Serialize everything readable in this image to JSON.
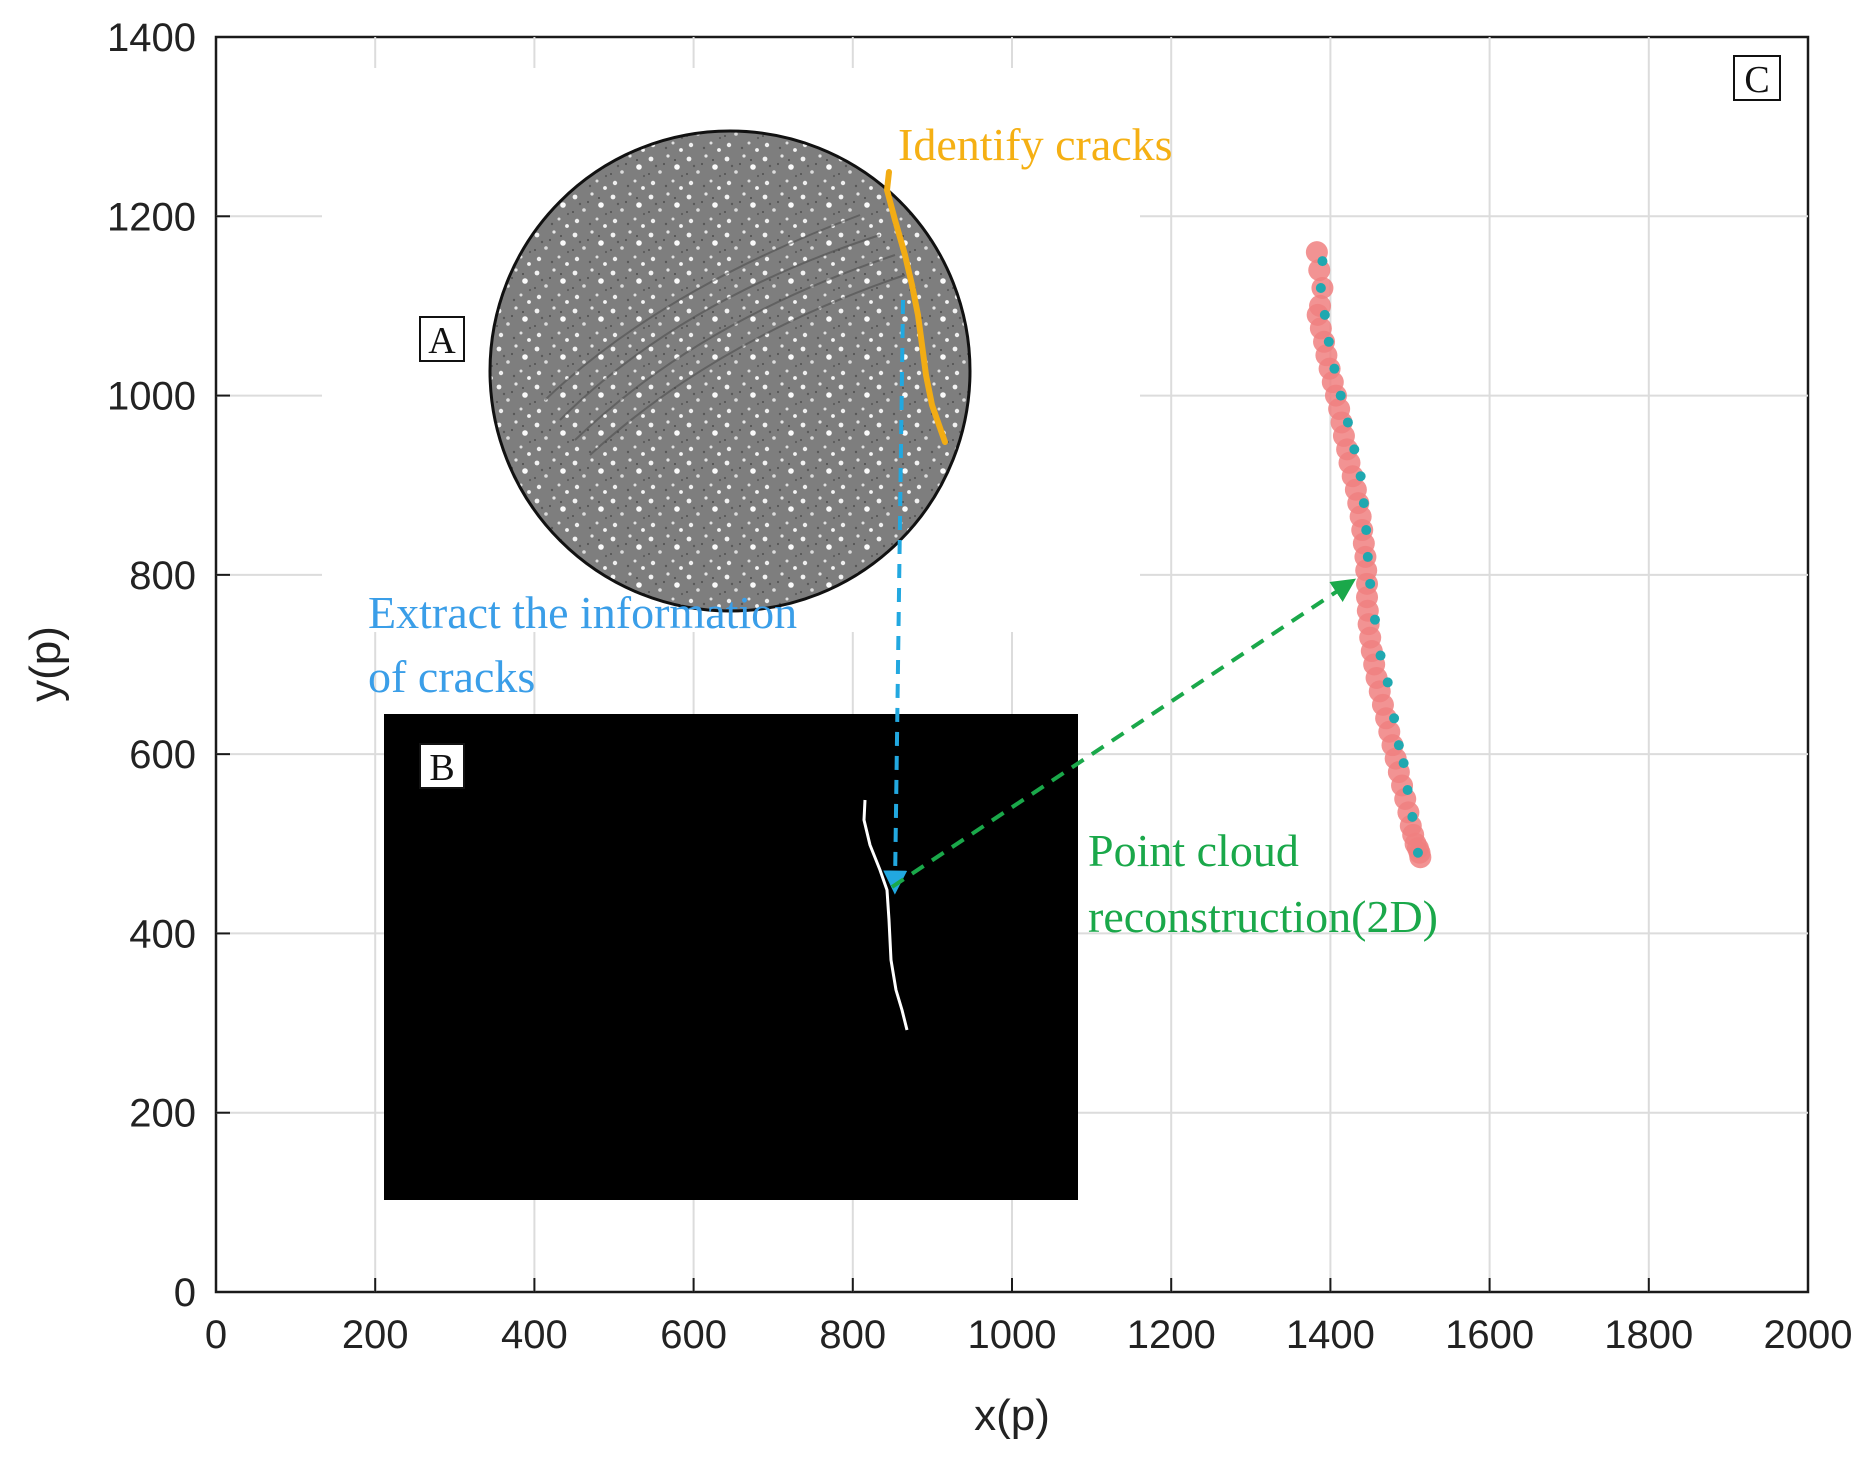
{
  "chart_data": {
    "type": "scatter",
    "xlabel": "x(p)",
    "ylabel": "y(p)",
    "xlim": [
      0,
      2000
    ],
    "ylim": [
      0,
      1400
    ],
    "xticks": [
      "0",
      "200",
      "400",
      "600",
      "800",
      "1000",
      "1200",
      "1400",
      "1600",
      "1800",
      "2000"
    ],
    "yticks": [
      "0",
      "200",
      "400",
      "600",
      "800",
      "1000",
      "1200",
      "1400"
    ],
    "grid": true,
    "panels": {
      "a": "A",
      "b": "B",
      "c": "C"
    },
    "annotations": {
      "identify": "Identify cracks",
      "extract_line1": "Extract the information",
      "extract_line2": "of cracks",
      "point_cloud_line1": "Point cloud",
      "point_cloud_line2": "reconstruction(2D)"
    },
    "series": [
      {
        "color": "#f08080",
        "x": [
          1383,
          1386,
          1390,
          1387,
          1384,
          1388,
          1392,
          1395,
          1399,
          1403,
          1407,
          1411,
          1414,
          1417,
          1421,
          1424,
          1428,
          1432,
          1435,
          1438,
          1440,
          1442,
          1444,
          1445,
          1446,
          1446,
          1447,
          1448,
          1450,
          1452,
          1455,
          1458,
          1462,
          1466,
          1470,
          1474,
          1478,
          1482,
          1486,
          1490,
          1494,
          1498,
          1501,
          1504,
          1507,
          1510,
          1512,
          1513
        ],
        "y": [
          1160,
          1140,
          1120,
          1100,
          1090,
          1075,
          1060,
          1045,
          1030,
          1015,
          1000,
          985,
          970,
          955,
          940,
          925,
          910,
          895,
          880,
          865,
          850,
          835,
          820,
          805,
          790,
          775,
          760,
          745,
          730,
          715,
          700,
          685,
          670,
          655,
          640,
          625,
          610,
          595,
          580,
          565,
          550,
          535,
          520,
          510,
          500,
          495,
          490,
          485
        ]
      },
      {
        "color": "#20a8b0",
        "x": [
          1390,
          1388,
          1393,
          1398,
          1405,
          1413,
          1422,
          1430,
          1438,
          1442,
          1445,
          1447,
          1450,
          1456,
          1463,
          1472,
          1480,
          1486,
          1492,
          1497,
          1503,
          1510
        ],
        "y": [
          1150,
          1120,
          1090,
          1060,
          1030,
          1000,
          970,
          940,
          910,
          880,
          850,
          820,
          790,
          750,
          710,
          680,
          640,
          610,
          590,
          560,
          530,
          490
        ]
      }
    ]
  },
  "colors": {
    "identify": "#f5b014",
    "extract": "#3a9ee8",
    "point_cloud": "#1aa84a",
    "crack_line": "#f2ac14",
    "blue_arrow": "#22a8e0",
    "green_arrow": "#1aa84a"
  }
}
